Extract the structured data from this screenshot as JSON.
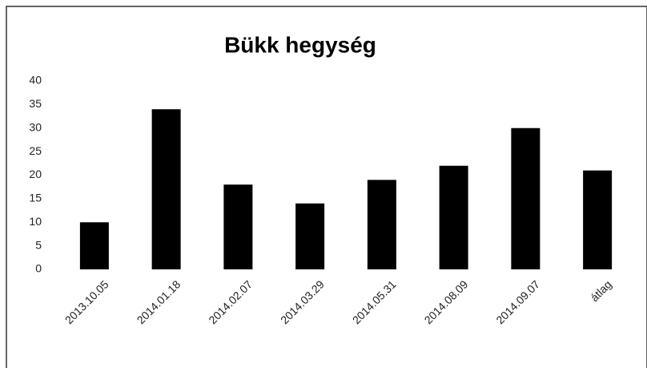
{
  "chart_data": {
    "type": "bar",
    "title": "Bükk hegység",
    "categories": [
      "2013.10.05",
      "2014.01.18",
      "2014.02.07",
      "2014.03.29",
      "2014.05.31",
      "2014.08.09",
      "2014.09.07",
      "átlag"
    ],
    "values": [
      10,
      34,
      18,
      14,
      19,
      22,
      30,
      21
    ],
    "color": "#000000",
    "ylim": [
      0,
      40
    ],
    "yticks": [
      0,
      5,
      10,
      15,
      20,
      25,
      30,
      35,
      40
    ],
    "grid": false
  }
}
